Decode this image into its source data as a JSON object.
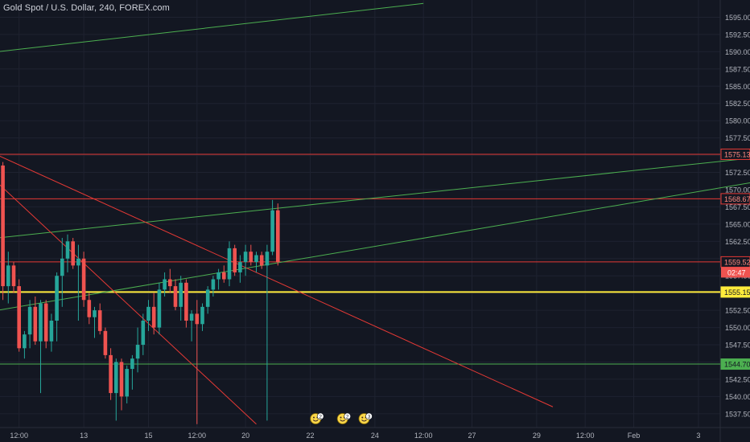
{
  "header": {
    "title": "Gold Spot / U.S. Dollar, 240, FOREX.com"
  },
  "colors": {
    "background": "#131722",
    "grid": "#1e2230",
    "axis_text": "#b2b5be",
    "bull": "#26a69a",
    "bear": "#ef5350",
    "red_line": "#e53935",
    "green_line": "#4caf50",
    "yellow_line": "#ffeb3b"
  },
  "chart_data": {
    "type": "candlestick",
    "ylim": [
      1535.5,
      1597.5
    ],
    "xlabel": "",
    "ylabel": "",
    "y_ticks": [
      1537.5,
      1540.0,
      1542.5,
      1545.0,
      1547.5,
      1550.0,
      1552.5,
      1555.0,
      1557.5,
      1560.0,
      1562.5,
      1565.0,
      1567.5,
      1570.0,
      1572.5,
      1575.0,
      1577.5,
      1580.0,
      1582.5,
      1585.0,
      1587.5,
      1590.0,
      1592.5,
      1595.0
    ],
    "x_ticks": [
      {
        "label": "12:00",
        "bar": 3
      },
      {
        "label": "13",
        "bar": 15
      },
      {
        "label": "15",
        "bar": 27
      },
      {
        "label": "12:00",
        "bar": 36
      },
      {
        "label": "20",
        "bar": 45
      },
      {
        "label": "22",
        "bar": 57
      },
      {
        "label": "24",
        "bar": 69
      },
      {
        "label": "12:00",
        "bar": 78
      },
      {
        "label": "27",
        "bar": 87
      },
      {
        "label": "29",
        "bar": 99
      },
      {
        "label": "12:00",
        "bar": 108
      },
      {
        "label": "Feb",
        "bar": 117
      },
      {
        "label": "3",
        "bar": 129
      }
    ],
    "candles": [
      {
        "o": 1573.5,
        "h": 1574.0,
        "l": 1554.0,
        "c": 1556.0
      },
      {
        "o": 1556.0,
        "h": 1561.0,
        "l": 1553.5,
        "c": 1559.0
      },
      {
        "o": 1559.0,
        "h": 1559.5,
        "l": 1555.0,
        "c": 1556.0
      },
      {
        "o": 1556.0,
        "h": 1557.0,
        "l": 1546.5,
        "c": 1547.0
      },
      {
        "o": 1547.0,
        "h": 1549.5,
        "l": 1545.5,
        "c": 1549.0
      },
      {
        "o": 1549.0,
        "h": 1554.0,
        "l": 1547.0,
        "c": 1553.0
      },
      {
        "o": 1553.0,
        "h": 1554.5,
        "l": 1547.5,
        "c": 1548.0
      },
      {
        "o": 1548.0,
        "h": 1554.0,
        "l": 1540.5,
        "c": 1553.5
      },
      {
        "o": 1553.5,
        "h": 1554.0,
        "l": 1547.0,
        "c": 1548.0
      },
      {
        "o": 1548.0,
        "h": 1552.0,
        "l": 1546.5,
        "c": 1551.0
      },
      {
        "o": 1551.0,
        "h": 1558.0,
        "l": 1548.0,
        "c": 1557.5
      },
      {
        "o": 1557.5,
        "h": 1563.0,
        "l": 1553.0,
        "c": 1560.0
      },
      {
        "o": 1560.0,
        "h": 1563.5,
        "l": 1558.0,
        "c": 1562.5
      },
      {
        "o": 1562.5,
        "h": 1563.0,
        "l": 1558.5,
        "c": 1559.0
      },
      {
        "o": 1559.0,
        "h": 1562.0,
        "l": 1551.0,
        "c": 1560.0
      },
      {
        "o": 1560.0,
        "h": 1561.0,
        "l": 1553.0,
        "c": 1554.0
      },
      {
        "o": 1554.0,
        "h": 1555.0,
        "l": 1550.5,
        "c": 1551.5
      },
      {
        "o": 1551.5,
        "h": 1553.0,
        "l": 1548.5,
        "c": 1552.5
      },
      {
        "o": 1552.5,
        "h": 1553.5,
        "l": 1549.0,
        "c": 1549.5
      },
      {
        "o": 1549.5,
        "h": 1550.0,
        "l": 1545.5,
        "c": 1546.0
      },
      {
        "o": 1546.0,
        "h": 1547.0,
        "l": 1539.5,
        "c": 1540.5
      },
      {
        "o": 1540.5,
        "h": 1545.5,
        "l": 1536.5,
        "c": 1545.0
      },
      {
        "o": 1545.0,
        "h": 1545.5,
        "l": 1538.0,
        "c": 1540.0
      },
      {
        "o": 1540.0,
        "h": 1544.5,
        "l": 1539.0,
        "c": 1544.0
      },
      {
        "o": 1544.0,
        "h": 1546.0,
        "l": 1541.0,
        "c": 1545.5
      },
      {
        "o": 1545.5,
        "h": 1550.0,
        "l": 1543.5,
        "c": 1547.5
      },
      {
        "o": 1547.5,
        "h": 1552.0,
        "l": 1546.0,
        "c": 1551.0
      },
      {
        "o": 1551.0,
        "h": 1554.0,
        "l": 1549.5,
        "c": 1553.0
      },
      {
        "o": 1553.0,
        "h": 1555.0,
        "l": 1549.0,
        "c": 1550.0
      },
      {
        "o": 1550.0,
        "h": 1556.5,
        "l": 1549.0,
        "c": 1555.5
      },
      {
        "o": 1555.5,
        "h": 1558.0,
        "l": 1554.5,
        "c": 1557.0
      },
      {
        "o": 1557.0,
        "h": 1558.5,
        "l": 1555.0,
        "c": 1556.0
      },
      {
        "o": 1556.0,
        "h": 1557.0,
        "l": 1552.5,
        "c": 1553.0
      },
      {
        "o": 1553.0,
        "h": 1557.5,
        "l": 1551.0,
        "c": 1556.5
      },
      {
        "o": 1556.5,
        "h": 1557.0,
        "l": 1550.0,
        "c": 1551.0
      },
      {
        "o": 1551.0,
        "h": 1552.5,
        "l": 1548.0,
        "c": 1552.0
      },
      {
        "o": 1552.0,
        "h": 1554.0,
        "l": 1536.0,
        "c": 1550.5
      },
      {
        "o": 1550.5,
        "h": 1553.5,
        "l": 1549.5,
        "c": 1553.0
      },
      {
        "o": 1553.0,
        "h": 1556.0,
        "l": 1552.0,
        "c": 1555.5
      },
      {
        "o": 1555.5,
        "h": 1557.5,
        "l": 1554.5,
        "c": 1557.0
      },
      {
        "o": 1557.0,
        "h": 1558.5,
        "l": 1555.5,
        "c": 1558.0
      },
      {
        "o": 1558.0,
        "h": 1559.0,
        "l": 1556.5,
        "c": 1557.0
      },
      {
        "o": 1557.0,
        "h": 1562.5,
        "l": 1556.0,
        "c": 1561.5
      },
      {
        "o": 1561.5,
        "h": 1562.0,
        "l": 1557.5,
        "c": 1558.0
      },
      {
        "o": 1558.0,
        "h": 1560.5,
        "l": 1556.5,
        "c": 1559.5
      },
      {
        "o": 1559.5,
        "h": 1562.0,
        "l": 1557.5,
        "c": 1561.0
      },
      {
        "o": 1561.0,
        "h": 1562.0,
        "l": 1559.0,
        "c": 1559.5
      },
      {
        "o": 1559.5,
        "h": 1561.0,
        "l": 1558.0,
        "c": 1560.5
      },
      {
        "o": 1560.5,
        "h": 1561.0,
        "l": 1558.5,
        "c": 1559.0
      },
      {
        "o": 1559.0,
        "h": 1562.0,
        "l": 1536.5,
        "c": 1561.0
      },
      {
        "o": 1561.0,
        "h": 1568.5,
        "l": 1560.5,
        "c": 1567.0
      },
      {
        "o": 1567.0,
        "h": 1568.0,
        "l": 1559.0,
        "c": 1559.5
      }
    ],
    "horizontal_lines": [
      {
        "price": 1575.13,
        "label": "1575.13",
        "color": "red"
      },
      {
        "price": 1568.67,
        "label": "1568.67",
        "color": "red"
      },
      {
        "price": 1559.52,
        "label": "1559.52",
        "color": "red"
      },
      {
        "price": 1555.15,
        "label": "1555.15",
        "color": "yellow"
      },
      {
        "price": 1544.7,
        "label": "1544.70",
        "color": "green"
      }
    ],
    "last_price_countdown": "02:47",
    "trend_lines": [
      {
        "color": "green",
        "from": {
          "bar": -1,
          "price": 1590.0
        },
        "to": {
          "bar": 78,
          "price": 1597.0
        }
      },
      {
        "color": "green",
        "from": {
          "bar": -1,
          "price": 1563.0
        },
        "to": {
          "bar": 150,
          "price": 1575.5
        }
      },
      {
        "color": "green",
        "from": {
          "bar": -1,
          "price": 1552.5
        },
        "to": {
          "bar": 150,
          "price": 1572.5
        }
      },
      {
        "color": "red",
        "from": {
          "bar": -1,
          "price": 1575.0
        },
        "to": {
          "bar": 102,
          "price": 1538.5
        }
      },
      {
        "color": "red",
        "from": {
          "bar": -1,
          "price": 1571.0
        },
        "to": {
          "bar": 47,
          "price": 1536.0
        }
      }
    ],
    "emoji_markers": [
      {
        "bar": 58,
        "count": "2"
      },
      {
        "bar": 63,
        "count": "2"
      },
      {
        "bar": 67,
        "count": "3"
      }
    ]
  }
}
